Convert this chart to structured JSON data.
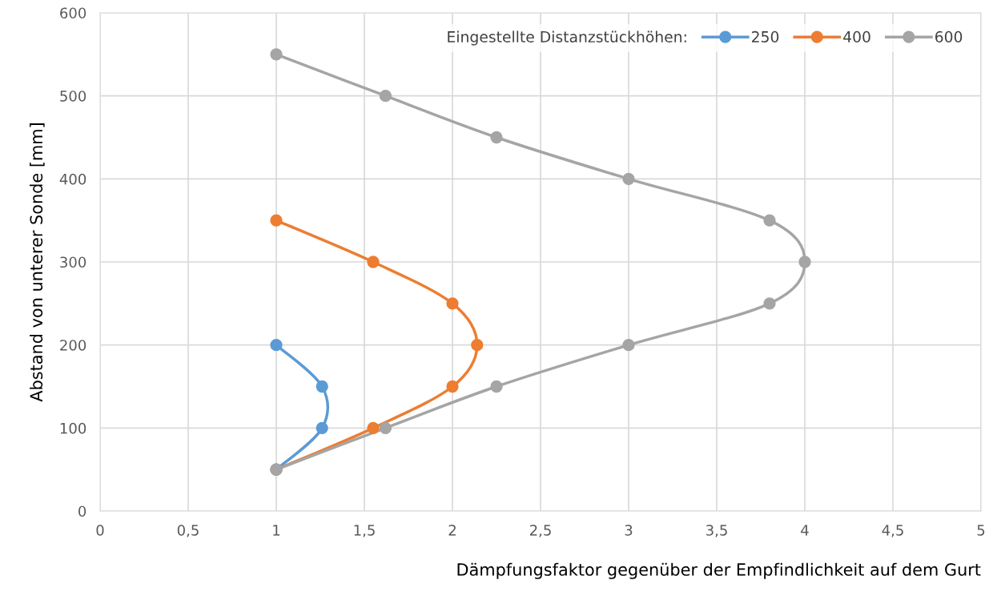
{
  "chart_data": {
    "type": "line",
    "xlabel": "Dämpfungsfaktor gegenüber der Empfindlichkeit auf dem Gurt",
    "ylabel": "Abstand von unterer Sonde [mm]",
    "legend_title": "Eingestellte Distanzstückhöhen:",
    "series": [
      {
        "name": "250",
        "color": "#5b9bd5",
        "x": [
          1,
          1.26,
          1.26,
          1
        ],
        "values": [
          50,
          100,
          150,
          200
        ]
      },
      {
        "name": "400",
        "color": "#ed7d31",
        "x": [
          1,
          1.55,
          2,
          2.14,
          2,
          1.55,
          1
        ],
        "values": [
          50,
          100,
          150,
          200,
          250,
          300,
          350
        ]
      },
      {
        "name": "600",
        "color": "#a5a5a5",
        "x": [
          1,
          1.62,
          2.25,
          3,
          3.8,
          4,
          3.8,
          3,
          2.25,
          1.62,
          1
        ],
        "values": [
          50,
          100,
          150,
          200,
          250,
          300,
          350,
          400,
          450,
          500,
          550
        ]
      }
    ],
    "xlim": [
      0,
      5
    ],
    "ylim": [
      0,
      600
    ],
    "xticks": [
      0,
      {
        "value": 0.5,
        "label": "0,5"
      },
      1,
      {
        "value": 1.5,
        "label": "1,5"
      },
      2,
      {
        "value": 2.5,
        "label": "2,5"
      },
      3,
      {
        "value": 3.5,
        "label": "3,5"
      },
      4,
      {
        "value": 4.5,
        "label": "4,5"
      },
      5
    ],
    "yticks": [
      0,
      100,
      200,
      300,
      400,
      500,
      600
    ],
    "grid": true,
    "legend": "top right",
    "marker": "circle",
    "line_style": "solid"
  }
}
